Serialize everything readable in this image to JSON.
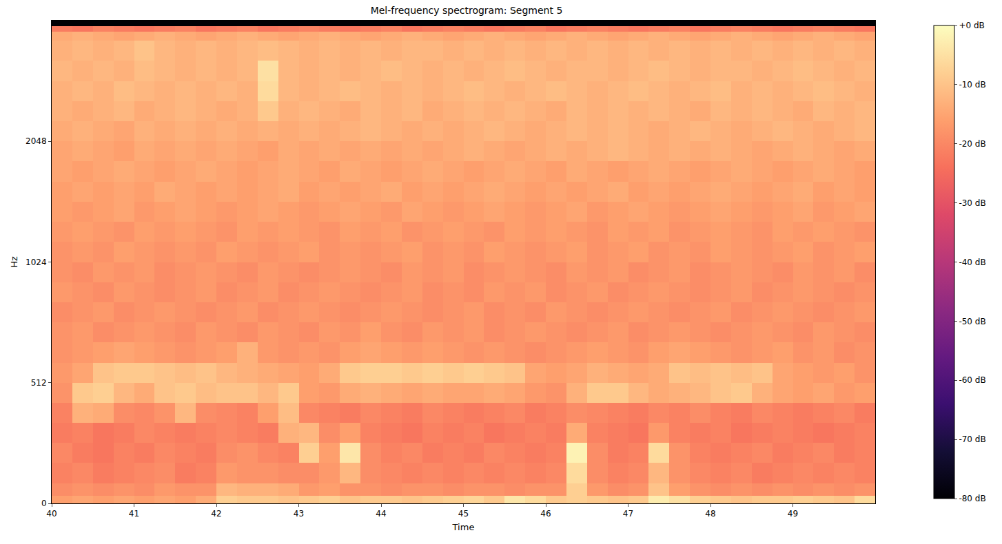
{
  "chart_data": {
    "type": "heatmap",
    "title": "Mel-frequency spectrogram: Segment 5",
    "xlabel": "Time",
    "ylabel": "Hz",
    "x": [
      40,
      40.25,
      40.5,
      40.75,
      41,
      41.25,
      41.5,
      41.75,
      42,
      42.25,
      42.5,
      42.75,
      43,
      43.25,
      43.5,
      43.75,
      44,
      44.25,
      44.5,
      44.75,
      45,
      45.25,
      45.5,
      45.75,
      46,
      46.25,
      46.5,
      46.75,
      47,
      47.25,
      47.5,
      47.75,
      48,
      48.25,
      48.5,
      48.75,
      49,
      49.25,
      49.5,
      49.75,
      50
    ],
    "y": [
      0,
      32,
      85,
      171,
      256,
      341,
      427,
      512,
      597,
      683,
      768,
      853,
      939,
      1024,
      1149,
      1290,
      1448,
      1626,
      1825,
      2048,
      2299,
      2580,
      2896,
      3251,
      3649,
      3840,
      3967,
      4096
    ],
    "z": [
      [
        -16,
        -15,
        -16,
        -15,
        -16,
        -15,
        -16,
        -14,
        -8,
        -9,
        -9,
        -10,
        -9,
        -8,
        -10,
        -9,
        -9,
        -10,
        -9,
        -8,
        -7,
        -9,
        -4,
        -6,
        -9,
        -8,
        -9,
        -10,
        -9,
        -3,
        -5,
        -8,
        -9,
        -10,
        -9,
        -9,
        -8,
        -9,
        -10,
        -6
      ],
      [
        -19,
        -18,
        -19,
        -18,
        -19,
        -17,
        -18,
        -18,
        -12,
        -13,
        -13,
        -14,
        -17,
        -16,
        -18,
        -18,
        -19,
        -18,
        -18,
        -19,
        -18,
        -18,
        -19,
        -18,
        -18,
        -8,
        -17,
        -19,
        -18,
        -10,
        -16,
        -18,
        -19,
        -18,
        -19,
        -18,
        -19,
        -18,
        -19,
        -18
      ],
      [
        -21,
        -20,
        -22,
        -21,
        -20,
        -19,
        -22,
        -21,
        -17,
        -18,
        -18,
        -19,
        -19,
        -17,
        -12,
        -19,
        -20,
        -21,
        -20,
        -21,
        -20,
        -21,
        -20,
        -21,
        -20,
        -6,
        -19,
        -21,
        -20,
        -12,
        -18,
        -20,
        -21,
        -20,
        -22,
        -21,
        -20,
        -21,
        -20,
        -21
      ],
      [
        -20,
        -22,
        -23,
        -21,
        -22,
        -20,
        -21,
        -22,
        -19,
        -18,
        -20,
        -21,
        -8,
        -16,
        -4,
        -19,
        -21,
        -20,
        -22,
        -21,
        -22,
        -20,
        -21,
        -22,
        -21,
        -2,
        -19,
        -22,
        -21,
        -6,
        -18,
        -21,
        -22,
        -21,
        -20,
        -22,
        -21,
        -20,
        -22,
        -21
      ],
      [
        -22,
        -21,
        -23,
        -22,
        -20,
        -21,
        -22,
        -21,
        -20,
        -21,
        -22,
        -13,
        -12,
        -19,
        -16,
        -21,
        -22,
        -23,
        -21,
        -22,
        -21,
        -23,
        -22,
        -21,
        -22,
        -14,
        -21,
        -22,
        -23,
        -17,
        -21,
        -22,
        -21,
        -23,
        -22,
        -21,
        -22,
        -23,
        -22,
        -21
      ],
      [
        -21,
        -13,
        -14,
        -19,
        -20,
        -18,
        -12,
        -19,
        -20,
        -21,
        -16,
        -11,
        -20,
        -21,
        -22,
        -20,
        -21,
        -22,
        -20,
        -21,
        -22,
        -21,
        -20,
        -22,
        -21,
        -19,
        -20,
        -21,
        -22,
        -20,
        -21,
        -19,
        -21,
        -22,
        -20,
        -21,
        -22,
        -21,
        -20,
        -22
      ],
      [
        -18,
        -9,
        -8,
        -12,
        -14,
        -10,
        -9,
        -11,
        -10,
        -10,
        -12,
        -9,
        -16,
        -17,
        -14,
        -13,
        -14,
        -15,
        -14,
        -15,
        -15,
        -14,
        -15,
        -17,
        -18,
        -13,
        -9,
        -9,
        -12,
        -14,
        -13,
        -12,
        -10,
        -9,
        -13,
        -15,
        -16,
        -15,
        -17,
        -16
      ],
      [
        -17,
        -15,
        -10,
        -9,
        -9,
        -10,
        -11,
        -10,
        -12,
        -13,
        -14,
        -15,
        -16,
        -14,
        -9,
        -8,
        -8,
        -9,
        -8,
        -9,
        -8,
        -9,
        -10,
        -15,
        -16,
        -15,
        -13,
        -14,
        -15,
        -14,
        -10,
        -11,
        -10,
        -11,
        -10,
        -15,
        -16,
        -17,
        -16,
        -18
      ],
      [
        -18,
        -17,
        -16,
        -15,
        -16,
        -17,
        -18,
        -17,
        -16,
        -13,
        -17,
        -18,
        -17,
        -18,
        -16,
        -15,
        -16,
        -17,
        -16,
        -17,
        -18,
        -17,
        -18,
        -19,
        -18,
        -17,
        -16,
        -17,
        -18,
        -16,
        -15,
        -16,
        -17,
        -18,
        -17,
        -16,
        -18,
        -17,
        -19,
        -18
      ],
      [
        -18,
        -17,
        -19,
        -18,
        -17,
        -18,
        -19,
        -17,
        -18,
        -19,
        -17,
        -18,
        -19,
        -17,
        -18,
        -16,
        -18,
        -19,
        -17,
        -18,
        -17,
        -19,
        -18,
        -17,
        -18,
        -19,
        -18,
        -17,
        -19,
        -18,
        -17,
        -18,
        -19,
        -18,
        -17,
        -18,
        -19,
        -17,
        -18,
        -19
      ],
      [
        -19,
        -18,
        -17,
        -19,
        -18,
        -17,
        -18,
        -19,
        -18,
        -17,
        -19,
        -18,
        -17,
        -18,
        -19,
        -18,
        -17,
        -18,
        -19,
        -18,
        -17,
        -19,
        -18,
        -19,
        -17,
        -18,
        -19,
        -18,
        -17,
        -18,
        -19,
        -18,
        -17,
        -19,
        -18,
        -17,
        -18,
        -19,
        -18,
        -17
      ],
      [
        -17,
        -18,
        -19,
        -17,
        -18,
        -19,
        -18,
        -17,
        -19,
        -18,
        -17,
        -19,
        -18,
        -17,
        -18,
        -19,
        -18,
        -17,
        -19,
        -18,
        -19,
        -17,
        -18,
        -17,
        -19,
        -18,
        -17,
        -19,
        -18,
        -17,
        -18,
        -19,
        -18,
        -17,
        -19,
        -18,
        -17,
        -18,
        -19,
        -18
      ],
      [
        -18,
        -19,
        -17,
        -18,
        -17,
        -19,
        -18,
        -17,
        -18,
        -19,
        -17,
        -18,
        -19,
        -18,
        -17,
        -18,
        -19,
        -17,
        -18,
        -17,
        -19,
        -18,
        -17,
        -18,
        -19,
        -17,
        -18,
        -17,
        -19,
        -18,
        -17,
        -19,
        -18,
        -17,
        -18,
        -19,
        -17,
        -18,
        -17,
        -19
      ],
      [
        -18,
        -17,
        -18,
        -16,
        -17,
        -18,
        -17,
        -18,
        -16,
        -17,
        -18,
        -17,
        -16,
        -18,
        -17,
        -18,
        -17,
        -16,
        -18,
        -17,
        -18,
        -16,
        -17,
        -18,
        -17,
        -16,
        -18,
        -17,
        -16,
        -18,
        -17,
        -18,
        -16,
        -17,
        -18,
        -17,
        -16,
        -18,
        -17,
        -16
      ],
      [
        -17,
        -16,
        -17,
        -18,
        -16,
        -17,
        -16,
        -17,
        -18,
        -16,
        -17,
        -16,
        -17,
        -18,
        -16,
        -17,
        -16,
        -18,
        -17,
        -16,
        -17,
        -18,
        -16,
        -17,
        -16,
        -17,
        -18,
        -16,
        -17,
        -16,
        -18,
        -17,
        -16,
        -17,
        -18,
        -16,
        -17,
        -16,
        -17,
        -18
      ],
      [
        -16,
        -17,
        -16,
        -15,
        -17,
        -16,
        -15,
        -16,
        -17,
        -16,
        -15,
        -16,
        -17,
        -16,
        -15,
        -16,
        -17,
        -15,
        -16,
        -17,
        -16,
        -15,
        -16,
        -17,
        -16,
        -15,
        -17,
        -16,
        -15,
        -16,
        -17,
        -16,
        -15,
        -16,
        -17,
        -16,
        -15,
        -17,
        -16,
        -15
      ],
      [
        -16,
        -15,
        -16,
        -15,
        -16,
        -14,
        -15,
        -16,
        -15,
        -16,
        -15,
        -14,
        -16,
        -15,
        -16,
        -15,
        -14,
        -16,
        -15,
        -16,
        -15,
        -14,
        -15,
        -16,
        -15,
        -16,
        -15,
        -14,
        -16,
        -15,
        -16,
        -15,
        -14,
        -15,
        -16,
        -15,
        -14,
        -16,
        -15,
        -16
      ],
      [
        -15,
        -16,
        -15,
        -14,
        -15,
        -16,
        -15,
        -14,
        -15,
        -16,
        -15,
        -14,
        -15,
        -16,
        -14,
        -15,
        -16,
        -15,
        -14,
        -15,
        -16,
        -15,
        -14,
        -15,
        -16,
        -14,
        -15,
        -16,
        -15,
        -14,
        -15,
        -16,
        -15,
        -14,
        -15,
        -16,
        -15,
        -14,
        -15,
        -16
      ],
      [
        -15,
        -14,
        -15,
        -16,
        -14,
        -15,
        -14,
        -15,
        -14,
        -15,
        -16,
        -14,
        -15,
        -14,
        -15,
        -14,
        -15,
        -14,
        -15,
        -14,
        -13,
        -14,
        -15,
        -14,
        -13,
        -14,
        -13,
        -12,
        -13,
        -14,
        -13,
        -14,
        -13,
        -14,
        -15,
        -14,
        -13,
        -14,
        -15,
        -14
      ],
      [
        -14,
        -13,
        -14,
        -15,
        -13,
        -14,
        -13,
        -14,
        -13,
        -14,
        -13,
        -14,
        -13,
        -14,
        -13,
        -12,
        -13,
        -14,
        -13,
        -14,
        -13,
        -12,
        -13,
        -14,
        -13,
        -12,
        -13,
        -12,
        -13,
        -14,
        -13,
        -12,
        -13,
        -14,
        -13,
        -12,
        -13,
        -14,
        -13,
        -12
      ],
      [
        -13,
        -14,
        -13,
        -12,
        -14,
        -13,
        -12,
        -13,
        -14,
        -13,
        -9,
        -13,
        -12,
        -13,
        -14,
        -12,
        -13,
        -12,
        -14,
        -13,
        -12,
        -13,
        -12,
        -13,
        -14,
        -12,
        -13,
        -12,
        -13,
        -12,
        -13,
        -14,
        -12,
        -13,
        -12,
        -13,
        -14,
        -12,
        -13,
        -12
      ],
      [
        -13,
        -12,
        -13,
        -11,
        -12,
        -13,
        -12,
        -13,
        -12,
        -13,
        -6,
        -12,
        -13,
        -12,
        -11,
        -12,
        -13,
        -12,
        -13,
        -12,
        -11,
        -12,
        -13,
        -12,
        -11,
        -12,
        -13,
        -12,
        -11,
        -12,
        -13,
        -12,
        -11,
        -13,
        -12,
        -13,
        -12,
        -11,
        -12,
        -13
      ],
      [
        -12,
        -13,
        -12,
        -13,
        -11,
        -12,
        -13,
        -12,
        -13,
        -12,
        -5,
        -12,
        -13,
        -12,
        -13,
        -12,
        -11,
        -12,
        -13,
        -12,
        -13,
        -12,
        -11,
        -12,
        -13,
        -12,
        -12,
        -13,
        -12,
        -11,
        -12,
        -13,
        -12,
        -12,
        -13,
        -12,
        -11,
        -12,
        -13,
        -12
      ],
      [
        -13,
        -12,
        -13,
        -12,
        -10,
        -12,
        -13,
        -12,
        -13,
        -12,
        -11,
        -12,
        -13,
        -12,
        -13,
        -12,
        -13,
        -12,
        -12,
        -13,
        -12,
        -13,
        -12,
        -13,
        -12,
        -13,
        -12,
        -13,
        -12,
        -13,
        -12,
        -13,
        -12,
        -13,
        -12,
        -13,
        -12,
        -13,
        -12,
        -13
      ],
      [
        -14,
        -13,
        -14,
        -15,
        -14,
        -13,
        -14,
        -15,
        -14,
        -13,
        -14,
        -15,
        -14,
        -13,
        -14,
        -15,
        -14,
        -13,
        -14,
        -15,
        -14,
        -13,
        -14,
        -15,
        -14,
        -13,
        -14,
        -15,
        -14,
        -13,
        -14,
        -15,
        -14,
        -13,
        -14,
        -15,
        -14,
        -13,
        -14,
        -15
      ],
      [
        -22,
        -23,
        -21,
        -22,
        -23,
        -22,
        -21,
        -23,
        -22,
        -21,
        -23,
        -22,
        -21,
        -22,
        -23,
        -22,
        -21,
        -23,
        -22,
        -21,
        -22,
        -23,
        -22,
        -21,
        -23,
        -22,
        -21,
        -22,
        -23,
        -22,
        -21,
        -23,
        -22,
        -21,
        -22,
        -23,
        -22,
        -21,
        -22,
        -23
      ],
      [
        -80,
        -80,
        -80,
        -80,
        -80,
        -80,
        -80,
        -80,
        -80,
        -80,
        -80,
        -80,
        -80,
        -80,
        -80,
        -80,
        -80,
        -80,
        -80,
        -80,
        -80,
        -80,
        -80,
        -80,
        -80,
        -80,
        -80,
        -80,
        -80,
        -80,
        -80,
        -80,
        -80,
        -80,
        -80,
        -80,
        -80,
        -80,
        -80,
        -80
      ]
    ],
    "xlim": [
      40,
      50
    ],
    "ylim": [
      0,
      4096
    ],
    "xticks": [
      40,
      41,
      42,
      43,
      44,
      45,
      46,
      47,
      48,
      49
    ],
    "yticks": [
      0,
      512,
      1024,
      2048
    ],
    "colorbar": {
      "range": [
        -80,
        0
      ],
      "ticks": [
        {
          "value": 0,
          "label": "+0 dB"
        },
        {
          "value": -10,
          "label": "-10 dB"
        },
        {
          "value": -20,
          "label": "-20 dB"
        },
        {
          "value": -30,
          "label": "-30 dB"
        },
        {
          "value": -40,
          "label": "-40 dB"
        },
        {
          "value": -50,
          "label": "-50 dB"
        },
        {
          "value": -60,
          "label": "-60 dB"
        },
        {
          "value": -70,
          "label": "-70 dB"
        },
        {
          "value": -80,
          "label": "-80 dB"
        }
      ]
    }
  }
}
